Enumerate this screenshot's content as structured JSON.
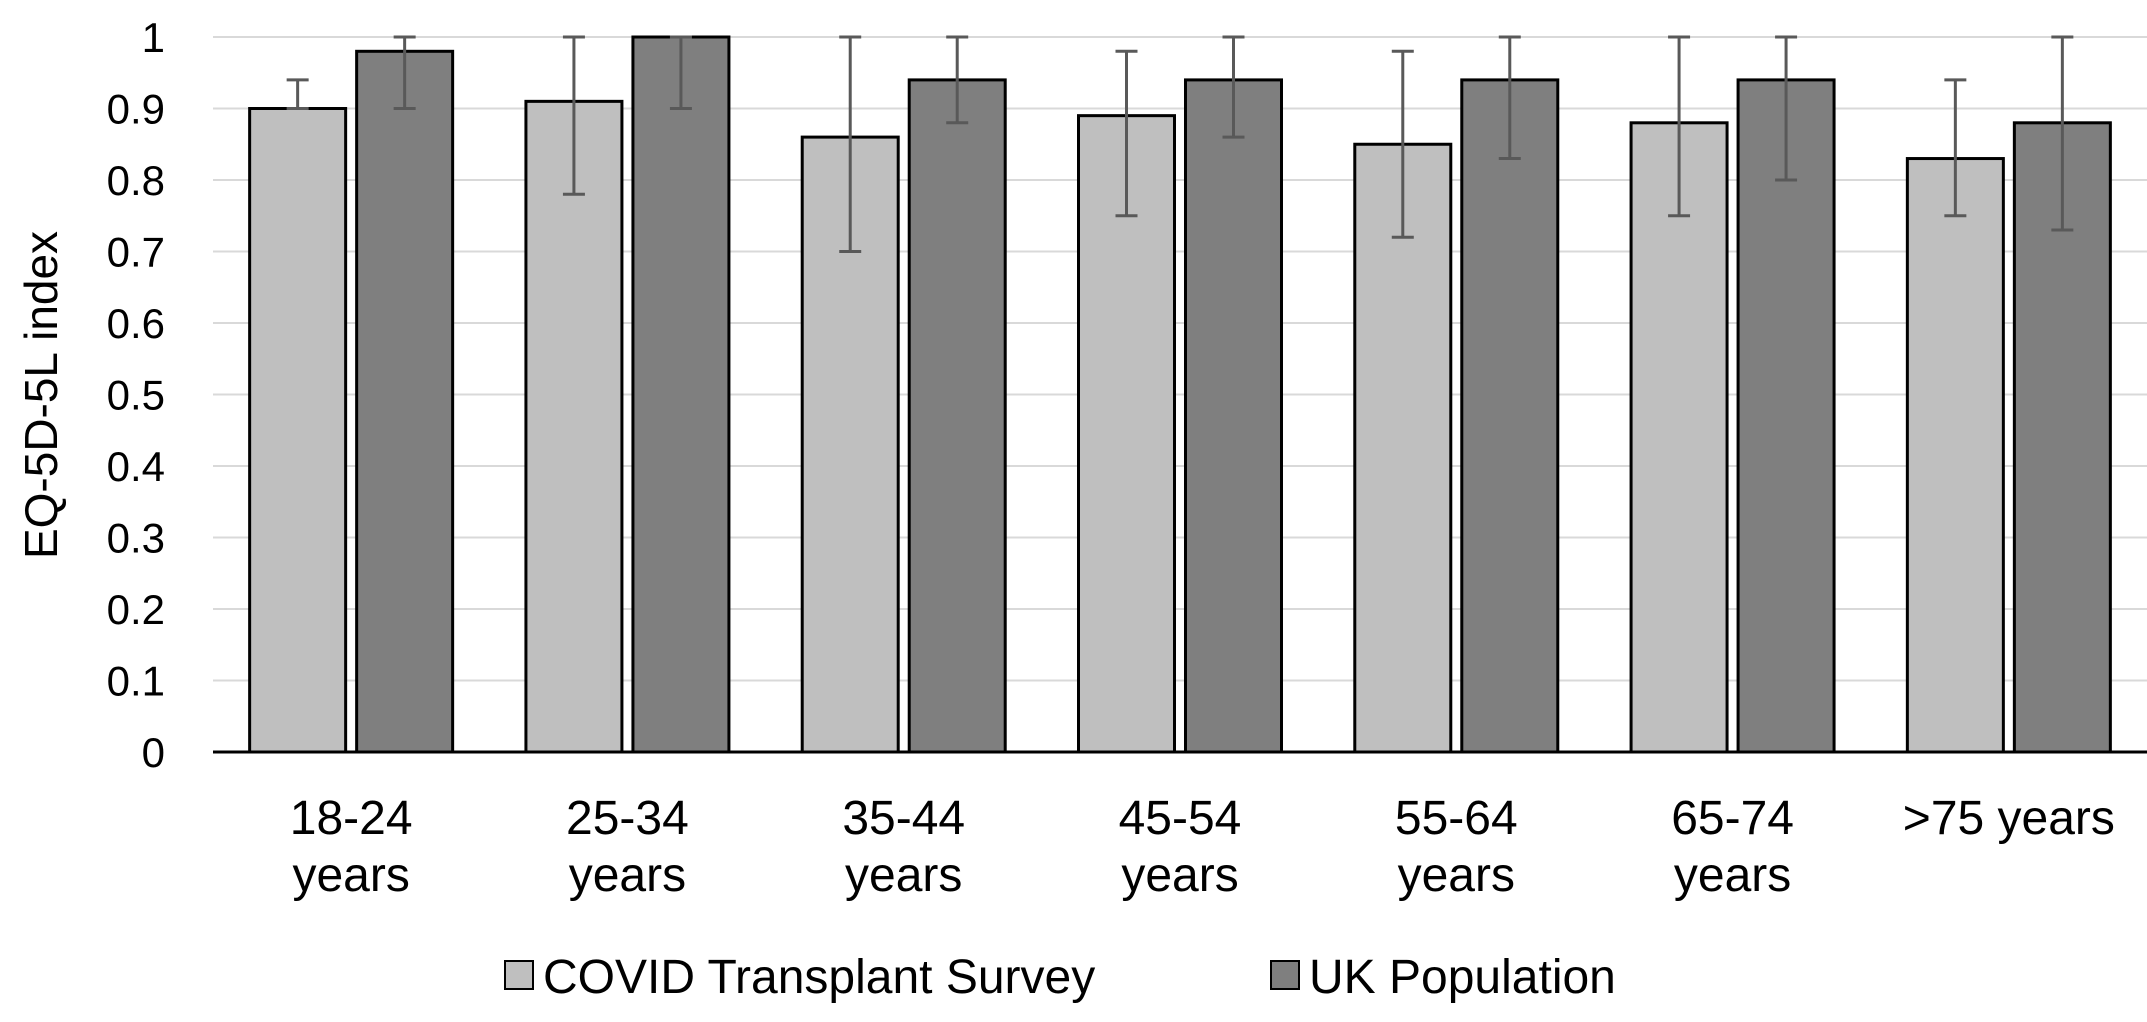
{
  "chart_data": {
    "type": "bar",
    "title": "",
    "xlabel": "",
    "ylabel": "EQ-5D-5L index",
    "ylim": [
      0,
      1
    ],
    "yticks": [
      0,
      0.1,
      0.2,
      0.3,
      0.4,
      0.5,
      0.6,
      0.7,
      0.8,
      0.9,
      1
    ],
    "ytick_labels": [
      "0",
      "0.1",
      "0.2",
      "0.3",
      "0.4",
      "0.5",
      "0.6",
      "0.7",
      "0.8",
      "0.9",
      "1"
    ],
    "grid": true,
    "legend_position": "bottom",
    "categories": [
      [
        "18-24",
        "years"
      ],
      [
        "25-34",
        "years"
      ],
      [
        "35-44",
        "years"
      ],
      [
        "45-54",
        "years"
      ],
      [
        "55-64",
        "years"
      ],
      [
        "65-74",
        "years"
      ],
      [
        ">75 years"
      ]
    ],
    "series": [
      {
        "name": "COVID Transplant Survey",
        "color": "#bfbfbf",
        "values": [
          0.9,
          0.91,
          0.86,
          0.89,
          0.85,
          0.88,
          0.83
        ],
        "error_low": [
          0.9,
          0.78,
          0.7,
          0.75,
          0.72,
          0.75,
          0.75
        ],
        "error_high": [
          0.94,
          1.0,
          1.0,
          0.98,
          0.98,
          1.0,
          0.94
        ]
      },
      {
        "name": "UK Population",
        "color": "#7f7f7f",
        "values": [
          0.98,
          1.0,
          0.94,
          0.94,
          0.94,
          0.94,
          0.88
        ],
        "error_low": [
          0.9,
          0.9,
          0.88,
          0.86,
          0.83,
          0.8,
          0.73
        ],
        "error_high": [
          1.0,
          1.0,
          1.0,
          1.0,
          1.0,
          1.0,
          1.0
        ]
      }
    ]
  }
}
